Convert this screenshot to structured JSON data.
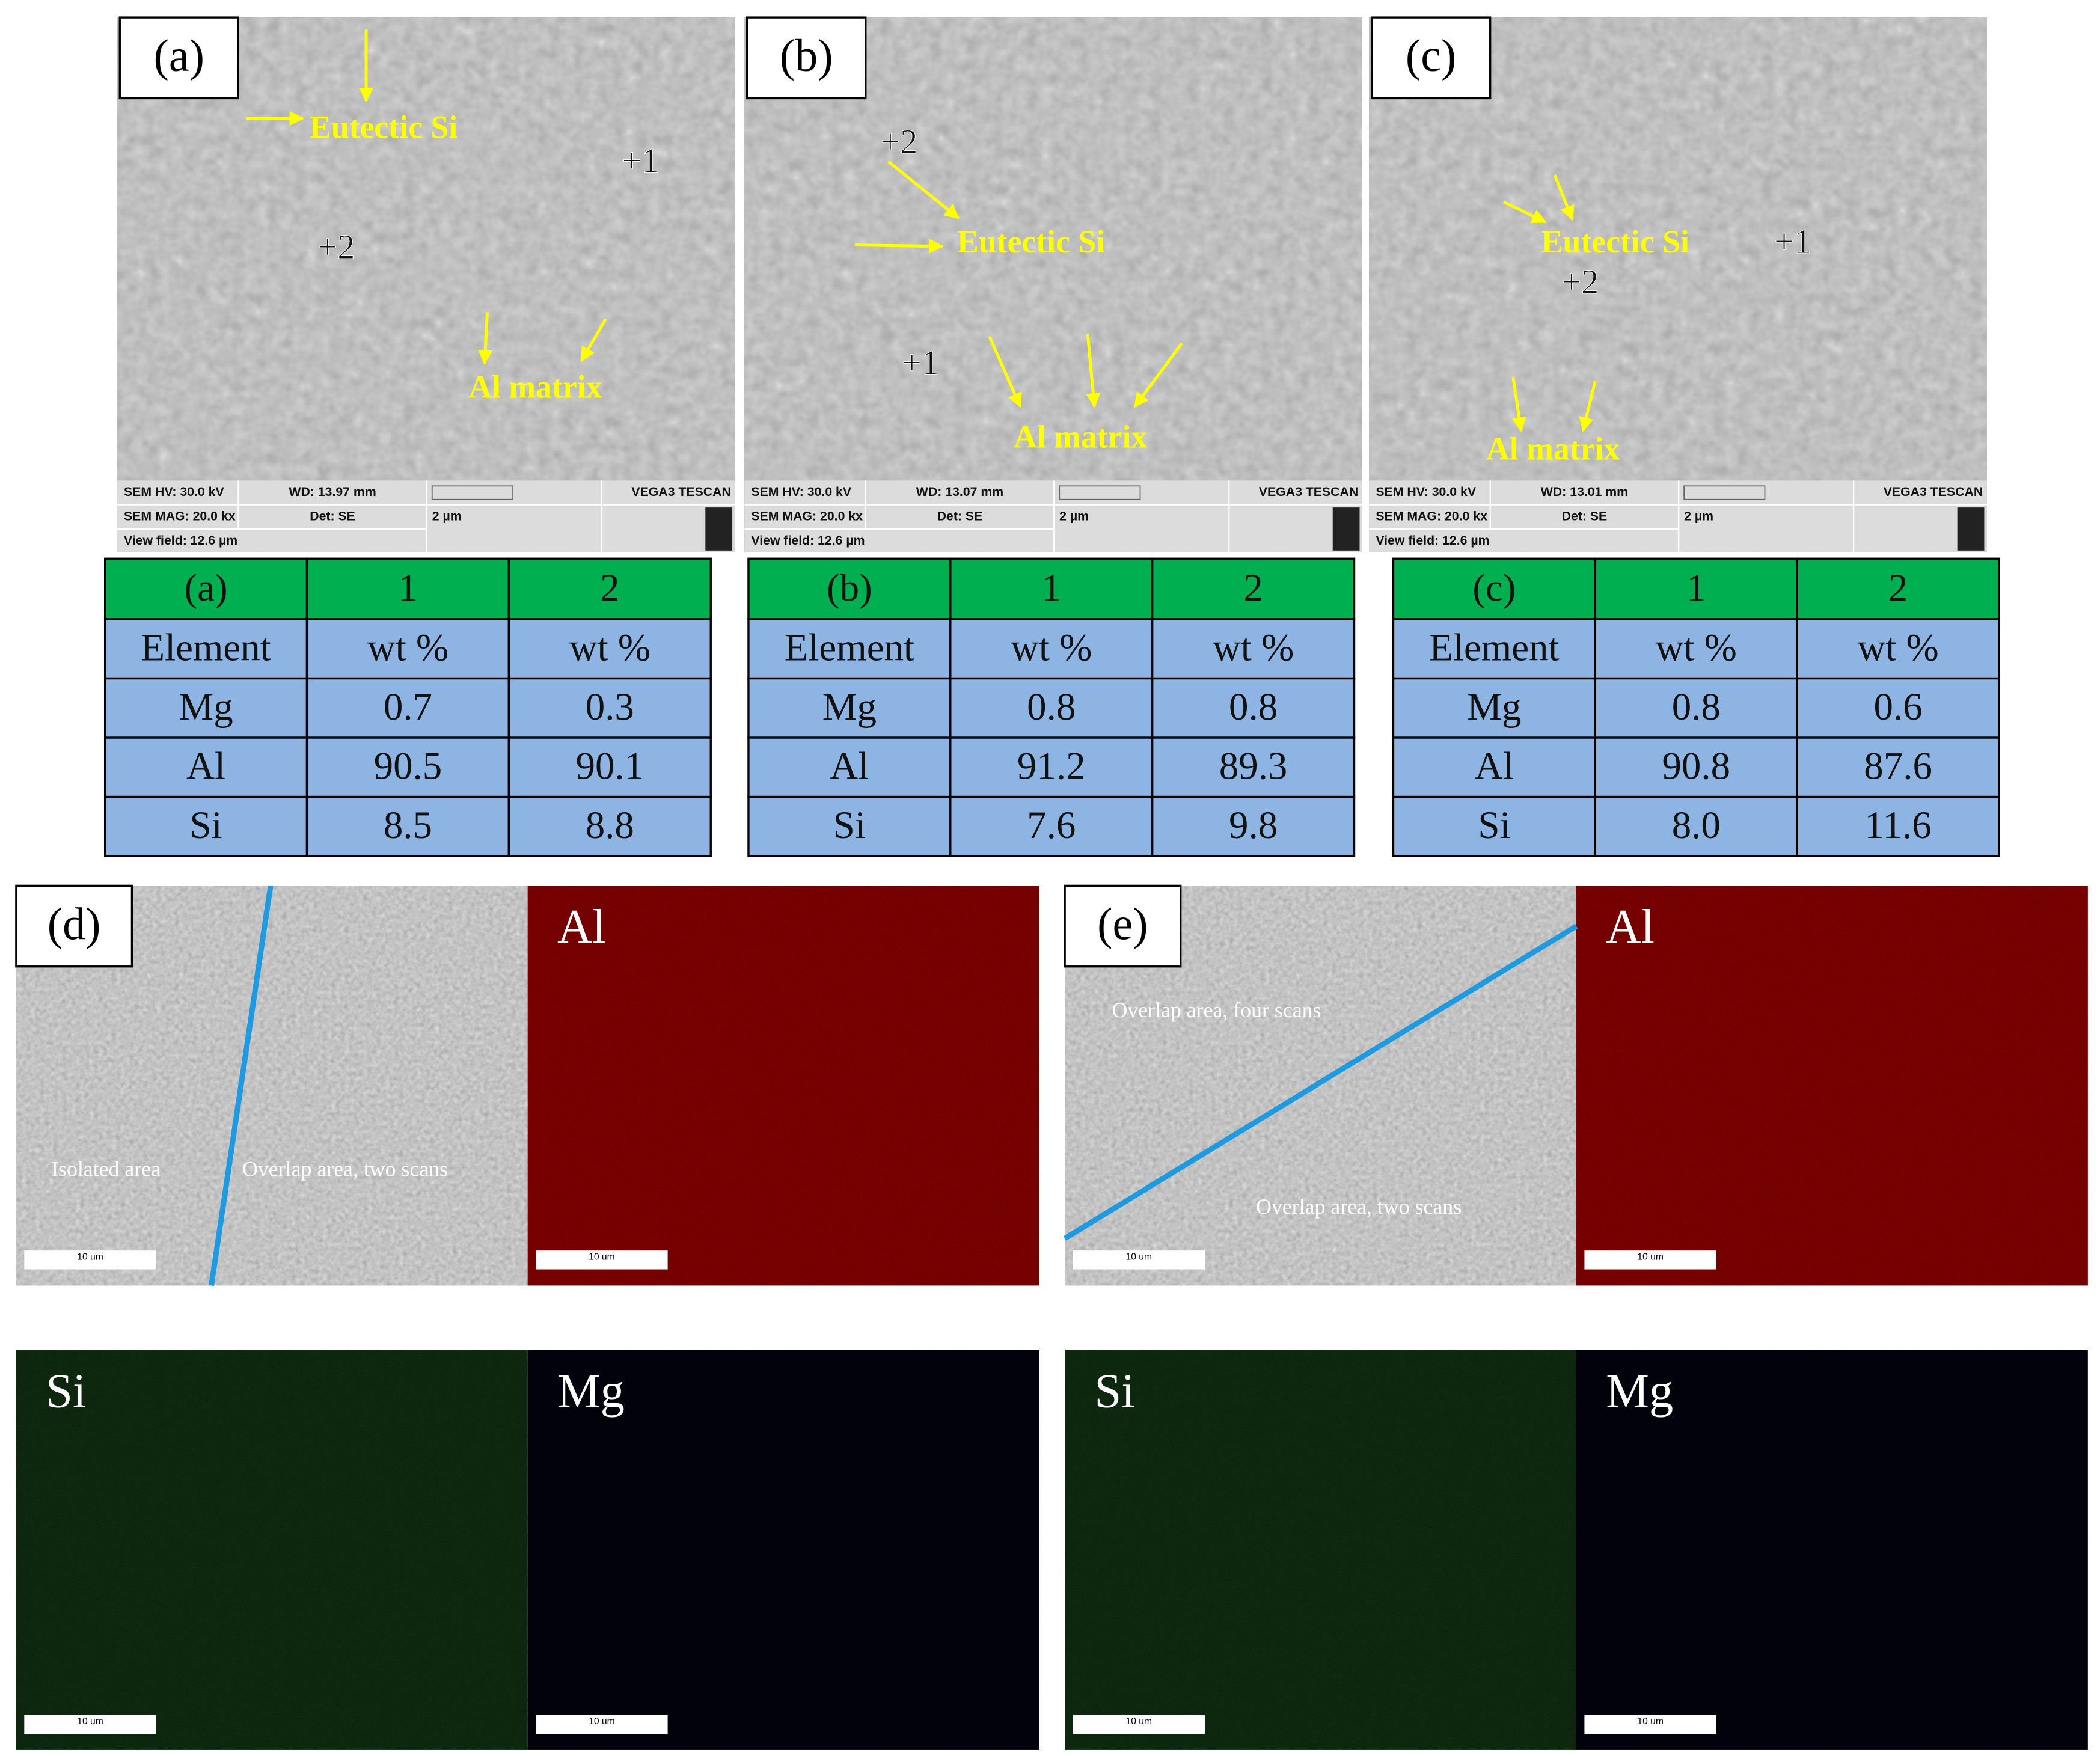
{
  "panels_top": [
    {
      "label": "(a)",
      "annotations": [
        "Eutectic Si",
        "Al matrix"
      ],
      "points": [
        "+1",
        "+2"
      ],
      "info": {
        "hv": "SEM HV: 30.0 kV",
        "wd": "WD: 13.97 mm",
        "brand": "VEGA3 TESCAN",
        "mag": "SEM MAG: 20.0 kx",
        "det": "Det: SE",
        "scale": "2 µm",
        "field": "View field: 12.6 µm"
      }
    },
    {
      "label": "(b)",
      "annotations": [
        "Eutectic Si",
        "Al matrix"
      ],
      "points": [
        "+1",
        "+2"
      ],
      "info": {
        "hv": "SEM HV: 30.0 kV",
        "wd": "WD: 13.07 mm",
        "brand": "VEGA3 TESCAN",
        "mag": "SEM MAG: 20.0 kx",
        "det": "Det: SE",
        "scale": "2 µm",
        "field": "View field: 12.6 µm"
      }
    },
    {
      "label": "(c)",
      "annotations": [
        "Eutectic Si",
        "Al matrix"
      ],
      "points": [
        "+1",
        "+2"
      ],
      "info": {
        "hv": "SEM HV: 30.0 kV",
        "wd": "WD: 13.01 mm",
        "brand": "VEGA3 TESCAN",
        "mag": "SEM MAG: 20.0 kx",
        "det": "Det: SE",
        "scale": "2 µm",
        "field": "View field: 12.6 µm"
      }
    }
  ],
  "tables": [
    {
      "header": [
        "(a)",
        "1",
        "2"
      ],
      "rows": [
        [
          "Element",
          "wt %",
          "wt %"
        ],
        [
          "Mg",
          "0.7",
          "0.3"
        ],
        [
          "Al",
          "90.5",
          "90.1"
        ],
        [
          "Si",
          "8.5",
          "8.8"
        ]
      ]
    },
    {
      "header": [
        "(b)",
        "1",
        "2"
      ],
      "rows": [
        [
          "Element",
          "wt %",
          "wt %"
        ],
        [
          "Mg",
          "0.8",
          "0.8"
        ],
        [
          "Al",
          "91.2",
          "89.3"
        ],
        [
          "Si",
          "7.6",
          "9.8"
        ]
      ]
    },
    {
      "header": [
        "(c)",
        "1",
        "2"
      ],
      "rows": [
        [
          "Element",
          "wt %",
          "wt %"
        ],
        [
          "Mg",
          "0.8",
          "0.6"
        ],
        [
          "Al",
          "90.8",
          "87.6"
        ],
        [
          "Si",
          "8.0",
          "11.6"
        ]
      ]
    }
  ],
  "panels_bottom": [
    {
      "label": "(d)",
      "annotations": [
        "Isolated area",
        "Overlap area, two scans"
      ],
      "maps": [
        "Al",
        "Si",
        "Mg"
      ],
      "scale_bar": "10 um"
    },
    {
      "label": "(e)",
      "annotations": [
        "Overlap area, four scans",
        "Overlap area, two scans"
      ],
      "maps": [
        "Al",
        "Si",
        "Mg"
      ],
      "scale_bar": "10 um"
    }
  ]
}
